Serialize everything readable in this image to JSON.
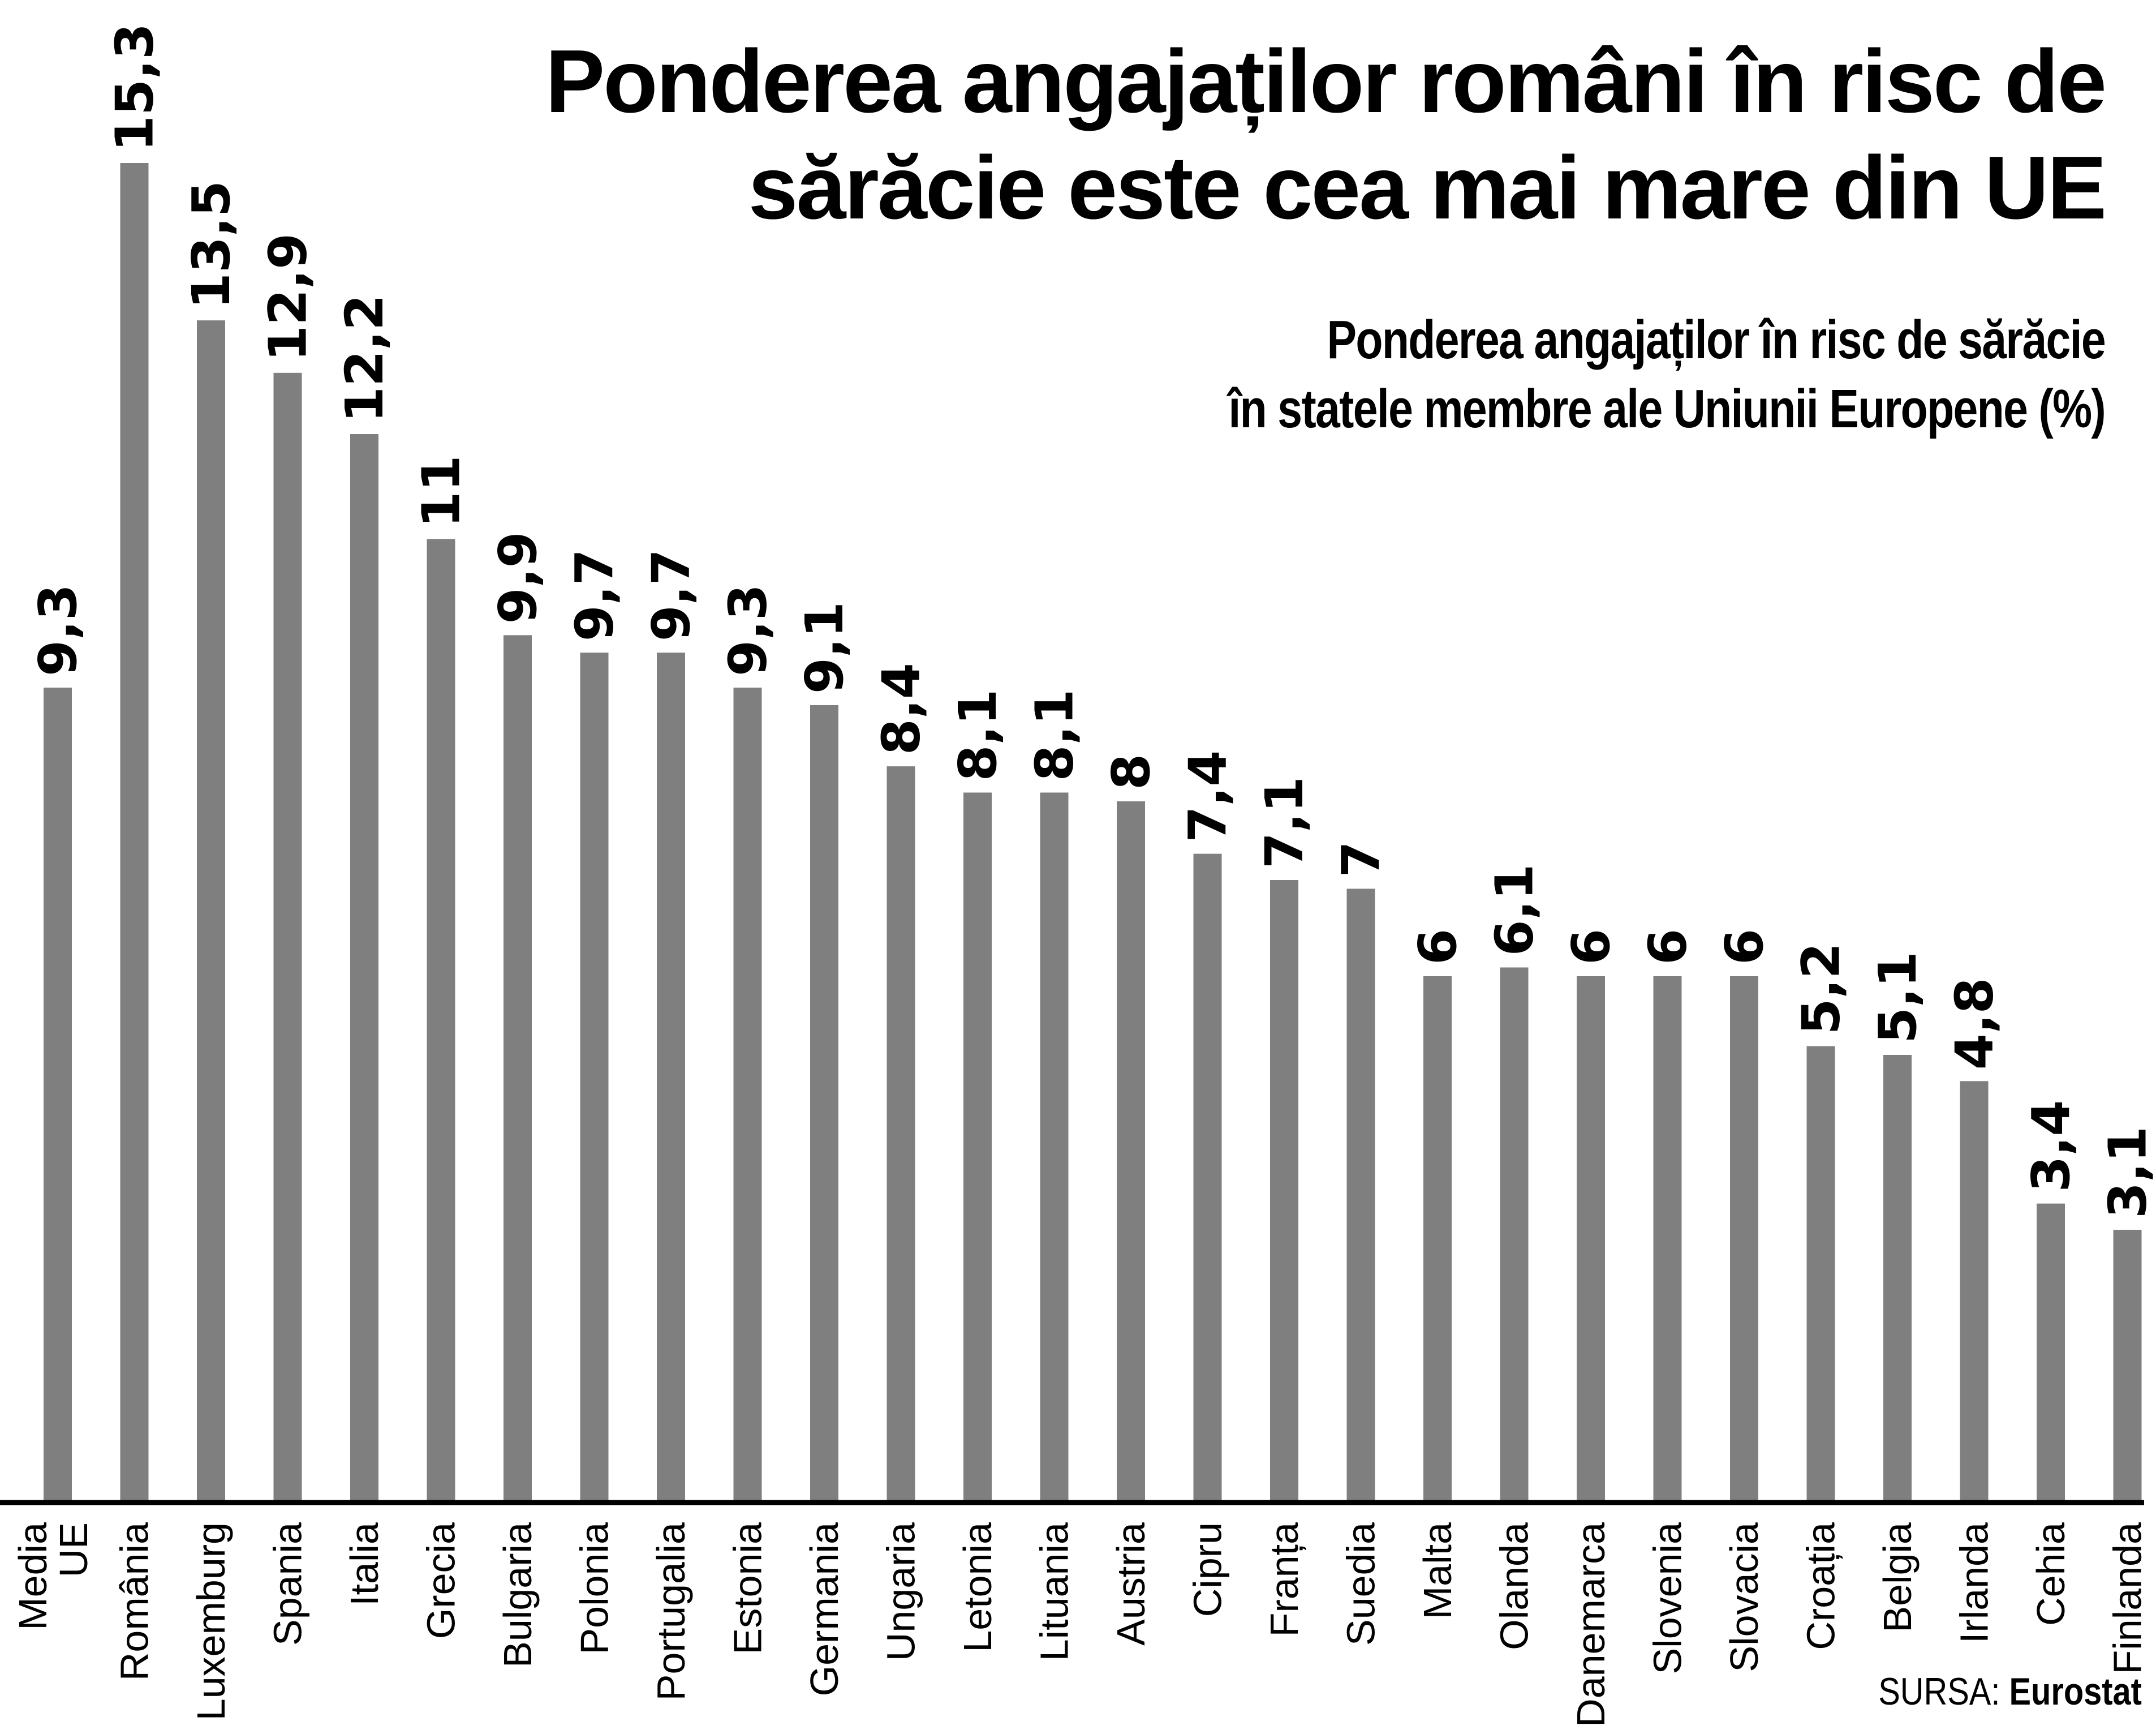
{
  "title": "Ponderea angajaților români în risc de sărăcie este cea mai mare din UE",
  "subtitle_line1": "Ponderea angajaților în risc de sărăcie",
  "subtitle_line2": "în statele membre ale Uniunii Europene (%)",
  "source_prefix": "SURSA:",
  "source_name": "Eurostat",
  "chart_data": {
    "type": "bar",
    "categories": [
      "Media UE",
      "România",
      "Luxemburg",
      "Spania",
      "Italia",
      "Grecia",
      "Bulgaria",
      "Polonia",
      "Portugalia",
      "Estonia",
      "Germania",
      "Ungaria",
      "Letonia",
      "Lituania",
      "Austria",
      "Cipru",
      "Franța",
      "Suedia",
      "Malta",
      "Olanda",
      "Danemarca",
      "Slovenia",
      "Slovacia",
      "Croația",
      "Belgia",
      "Irlanda",
      "Cehia",
      "Finlanda"
    ],
    "values": [
      9.3,
      15.3,
      13.5,
      12.9,
      12.2,
      11,
      9.9,
      9.7,
      9.7,
      9.3,
      9.1,
      8.4,
      8.1,
      8.1,
      8,
      7.4,
      7.1,
      7,
      6,
      6.1,
      6,
      6,
      6,
      5.2,
      5.1,
      4.8,
      3.4,
      3.1
    ],
    "value_labels": [
      "9,3",
      "15,3",
      "13,5",
      "12,9",
      "12,2",
      "11",
      "9,9",
      "9,7",
      "9,7",
      "9,3",
      "9,1",
      "8,4",
      "8,1",
      "8,1",
      "8",
      "7,4",
      "7,1",
      "7",
      "6",
      "6,1",
      "6",
      "6",
      "6",
      "5,2",
      "5,1",
      "4,8",
      "3,4",
      "3,1"
    ],
    "ylim": [
      0,
      15.3
    ],
    "grid": false,
    "legend": "none",
    "bar_color": "#7f7f7f",
    "axis_color": "#000000"
  }
}
